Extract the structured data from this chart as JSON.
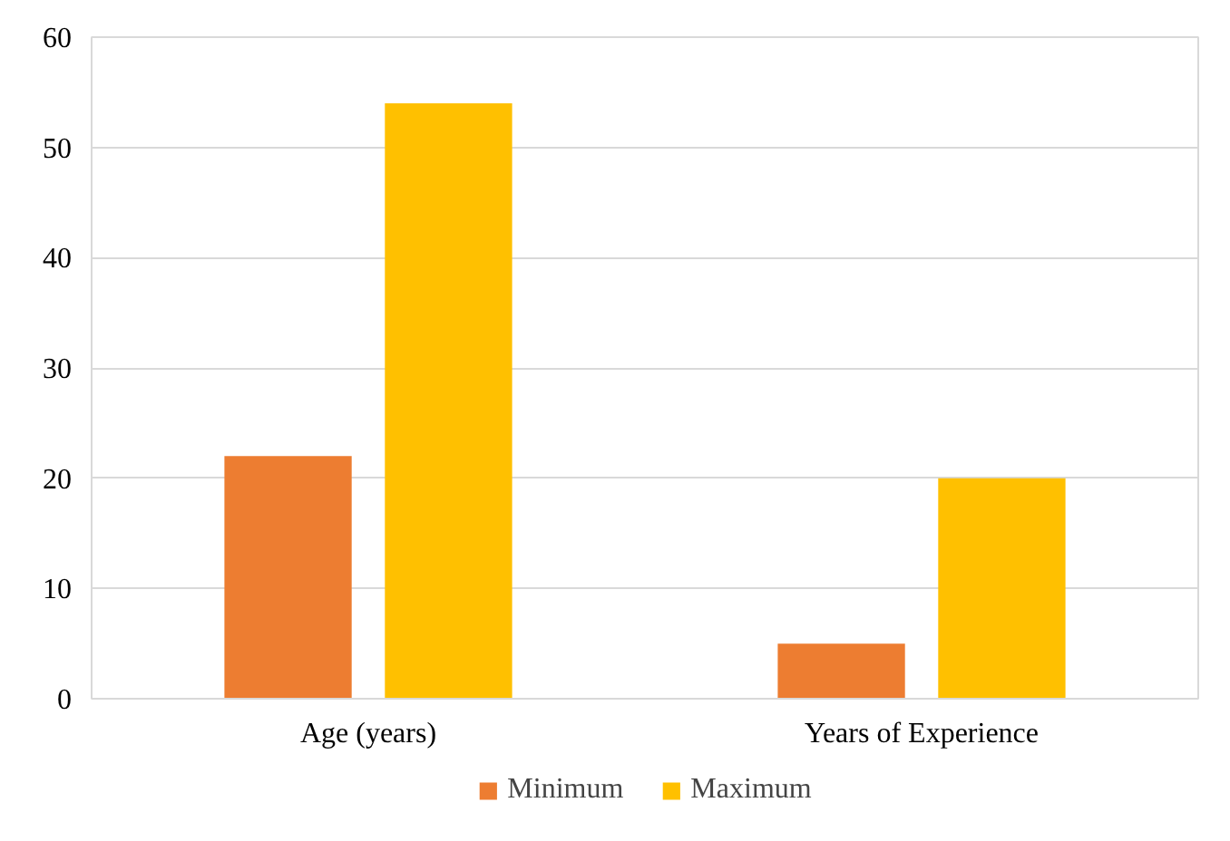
{
  "chart_data": {
    "type": "bar",
    "categories": [
      "Age (years)",
      "Years of Experience"
    ],
    "series": [
      {
        "name": "Minimum",
        "color": "#ed7d31",
        "values": [
          22,
          5
        ]
      },
      {
        "name": "Maximum",
        "color": "#ffc000",
        "values": [
          54,
          20
        ]
      }
    ],
    "ylim": [
      0,
      60
    ],
    "yticks": [
      0,
      10,
      20,
      30,
      40,
      50,
      60
    ],
    "grid": "y",
    "legend": "bottom"
  }
}
